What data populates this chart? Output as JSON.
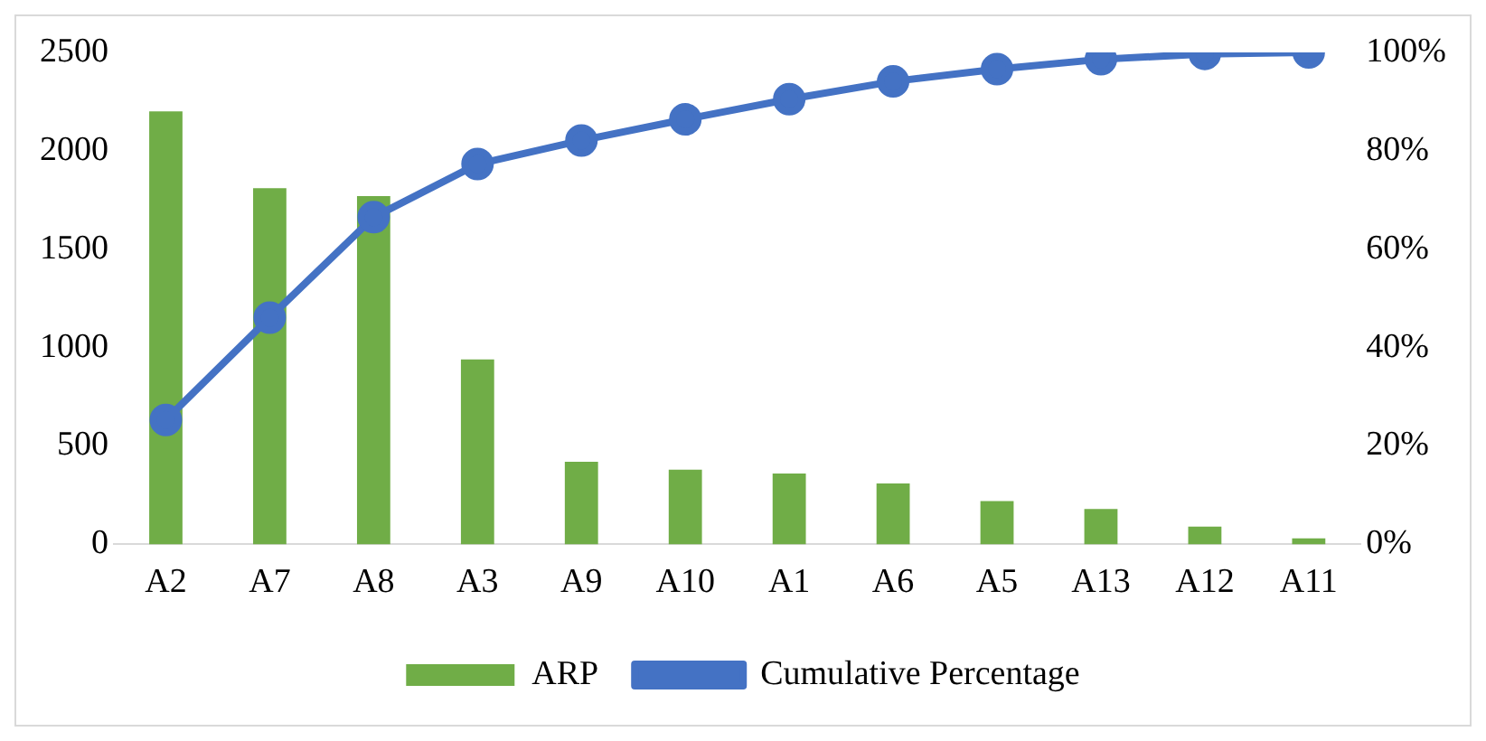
{
  "chart_data": {
    "type": "bar",
    "categories": [
      "A2",
      "A7",
      "A8",
      "A3",
      "A9",
      "A10",
      "A1",
      "A6",
      "A5",
      "A13",
      "A12",
      "A11"
    ],
    "series": [
      {
        "name": "ARP",
        "color": "#70ad47",
        "values": [
          2200,
          1810,
          1770,
          940,
          420,
          380,
          360,
          310,
          220,
          180,
          90,
          30
        ]
      },
      {
        "name": "Cumulative Percentage",
        "type": "line",
        "axis": "y2",
        "color": "#4472c4",
        "marker": "circle",
        "values": [
          25.3,
          46.1,
          66.5,
          77.3,
          82.1,
          86.4,
          90.5,
          94.1,
          96.6,
          98.6,
          99.7,
          100
        ]
      }
    ],
    "ylim": [
      0,
      2500
    ],
    "yticks": [
      0,
      500,
      1000,
      1500,
      2000,
      2500
    ],
    "y2lim": [
      0,
      100
    ],
    "y2ticks": [
      {
        "value": 0,
        "label": "0%"
      },
      {
        "value": 20,
        "label": "20%"
      },
      {
        "value": 40,
        "label": "40%"
      },
      {
        "value": 60,
        "label": "60%"
      },
      {
        "value": 80,
        "label": "80%"
      },
      {
        "value": 100,
        "label": "100%"
      }
    ],
    "grid": false,
    "legend": "bottom"
  }
}
